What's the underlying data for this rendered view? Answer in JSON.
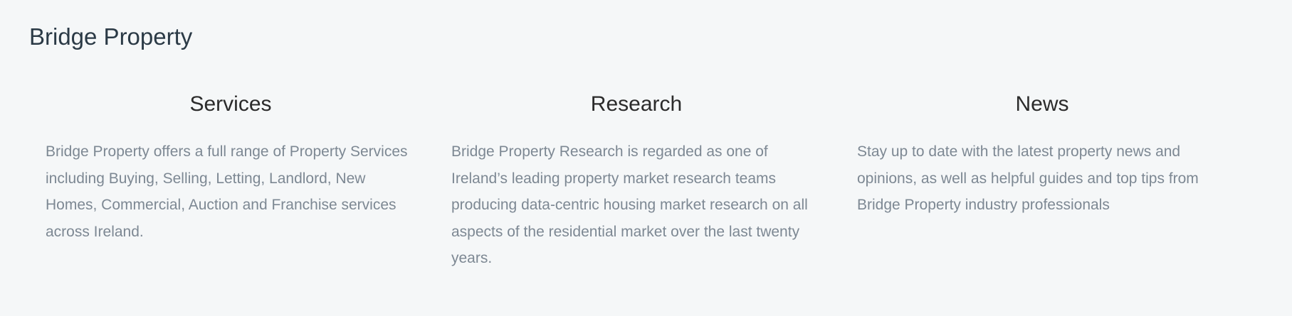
{
  "brand": {
    "title": "Bridge Property"
  },
  "sections": [
    {
      "title": "Services",
      "body": "Bridge Property offers a full range of Property Services including Buying, Selling, Letting, Landlord, New Homes, Commercial, Auction and Franchise services across Ireland."
    },
    {
      "title": "Research",
      "body": "Bridge Property Research is regarded as one of Ireland’s leading property market research teams producing data-centric housing market research on all aspects of the residential market over the last twenty years."
    },
    {
      "title": "News",
      "body": "Stay up to date with the latest property news and opinions, as well as helpful guides and top tips from Bridge Property industry professionals"
    }
  ],
  "colors": {
    "background": "#f5f7f8",
    "brand_text": "#2b3a46",
    "heading_text": "#2b2b2b",
    "body_text": "#7d8893"
  }
}
